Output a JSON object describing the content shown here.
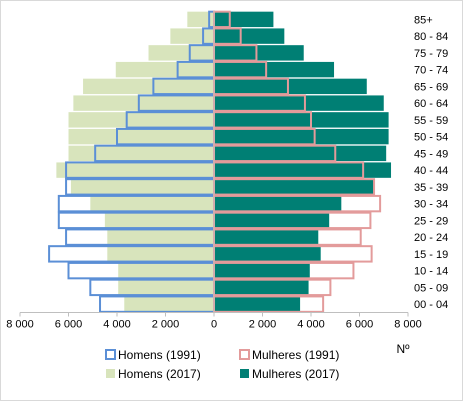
{
  "chart_data": {
    "type": "bar",
    "orientation": "horizontal",
    "layout": "population-pyramid",
    "categories": [
      "00 - 04",
      "05 - 09",
      "10 - 14",
      "15 - 19",
      "20 - 24",
      "25 - 29",
      "30 - 34",
      "35 - 39",
      "40 - 44",
      "45 - 49",
      "50 - 54",
      "55 - 59",
      "60 - 64",
      "65 - 69",
      "70 - 74",
      "75 - 79",
      "80 - 84",
      "85+"
    ],
    "series": [
      {
        "name": "Homens (2017)",
        "side": "left",
        "style": "filled",
        "color": "#d8e4bc",
        "values": [
          3700,
          3950,
          3950,
          4400,
          4400,
          4500,
          5100,
          5900,
          6500,
          6000,
          6000,
          6000,
          5800,
          5400,
          4050,
          2700,
          1800,
          1100
        ]
      },
      {
        "name": "Mulheres (2017)",
        "side": "right",
        "style": "filled",
        "color": "#007f74",
        "values": [
          3550,
          3900,
          3950,
          4400,
          4300,
          4750,
          5250,
          6600,
          7300,
          7100,
          7200,
          7200,
          7000,
          6300,
          4950,
          3700,
          2900,
          2450
        ]
      },
      {
        "name": "Homens (1991)",
        "side": "left",
        "style": "outline",
        "color": "#5b8fd6",
        "values": [
          4700,
          5100,
          6000,
          6800,
          6100,
          6400,
          6400,
          6100,
          6100,
          4900,
          4000,
          3600,
          3100,
          2500,
          1500,
          1000,
          450,
          200
        ]
      },
      {
        "name": "Mulheres (1991)",
        "side": "right",
        "style": "outline",
        "color": "#e39b9b",
        "values": [
          4500,
          4800,
          5750,
          6500,
          6050,
          6450,
          6850,
          6600,
          6150,
          5000,
          4150,
          4000,
          3750,
          3050,
          2150,
          1750,
          1100,
          650
        ]
      }
    ],
    "xlim": [
      -8000,
      8000
    ],
    "xticks": [
      -8000,
      -6000,
      -4000,
      -2000,
      0,
      2000,
      4000,
      6000,
      8000
    ],
    "xtick_labels": [
      "8 000",
      "6 000",
      "4 000",
      "2 000",
      "0",
      "2 000",
      "4 000",
      "6 000",
      "8 000"
    ],
    "xlabel": "Nº",
    "legend_position": "bottom",
    "legend": [
      {
        "label": "Homens (1991)",
        "series": 2
      },
      {
        "label": "Mulheres (1991)",
        "series": 3
      },
      {
        "label": "Homens (2017)",
        "series": 0
      },
      {
        "label": "Mulheres (2017)",
        "series": 1
      }
    ],
    "grid": false
  }
}
